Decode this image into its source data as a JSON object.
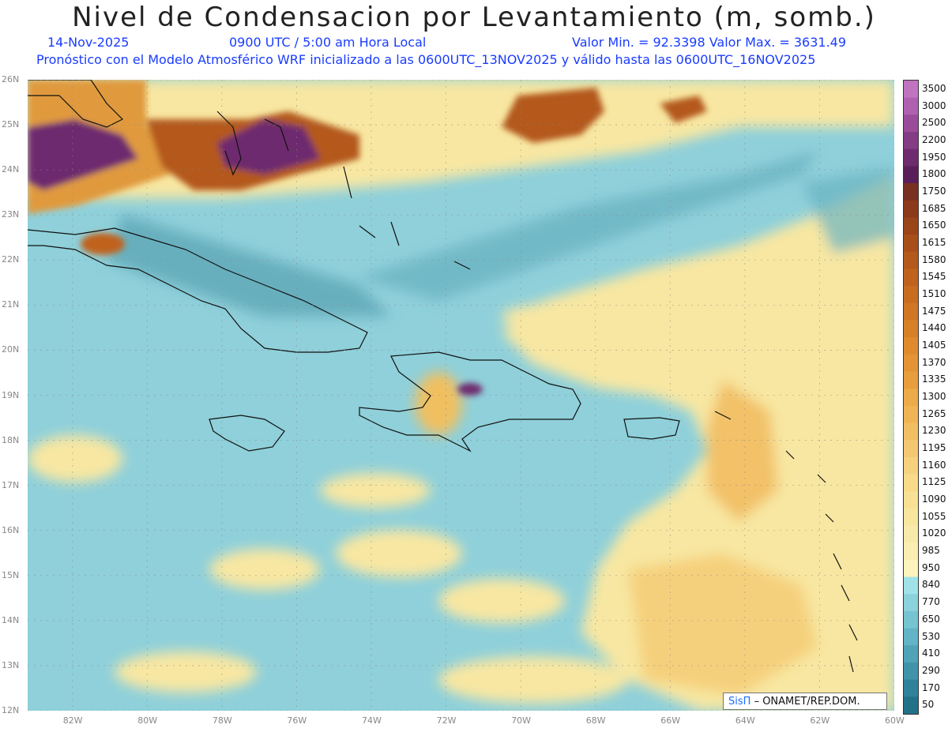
{
  "header": {
    "title": "Nivel de Condensacion por Levantamiento (m, somb.)",
    "date": "14-Nov-2025",
    "time": "0900 UTC / 5:00 am Hora Local",
    "minmax": "Valor Min. = 92.3398   Valor Max. = 3631.49",
    "forecast_note": "Pronóstico con el Modelo Atmosférico WRF inicializado a las 0600UTC_13NOV2025 y válido hasta las  0600UTC_16NOV2025"
  },
  "map": {
    "lat_labels": [
      "26N",
      "25N",
      "24N",
      "23N",
      "22N",
      "21N",
      "20N",
      "19N",
      "18N",
      "17N",
      "16N",
      "15N",
      "14N",
      "13N",
      "12N"
    ],
    "lon_labels": [
      "82W",
      "80W",
      "78W",
      "76W",
      "74W",
      "72W",
      "70W",
      "68W",
      "66W",
      "64W",
      "62W",
      "60W"
    ],
    "lat_range": [
      12,
      26
    ],
    "lon_range": [
      -83.2,
      -60
    ],
    "grid": "dotted"
  },
  "colorbar": {
    "levels": [
      "3500",
      "3000",
      "2500",
      "2200",
      "1950",
      "1800",
      "1750",
      "1685",
      "1650",
      "1615",
      "1580",
      "1545",
      "1510",
      "1475",
      "1440",
      "1405",
      "1370",
      "1335",
      "1300",
      "1265",
      "1230",
      "1195",
      "1160",
      "1125",
      "1090",
      "1055",
      "1020",
      "985",
      "950",
      "840",
      "770",
      "650",
      "530",
      "410",
      "290",
      "170",
      "50"
    ],
    "colors": [
      "#c074c0",
      "#b060b0",
      "#9a4c9a",
      "#843c84",
      "#6e2c6e",
      "#5a1f58",
      "#7a3020",
      "#8c3a1a",
      "#9a4418",
      "#a84e1a",
      "#b4581c",
      "#c0621e",
      "#c86c20",
      "#d07624",
      "#d88028",
      "#e08a2e",
      "#e49434",
      "#e89e3c",
      "#ecaa48",
      "#f0b454",
      "#f2be62",
      "#f4c870",
      "#f6d27e",
      "#f8da8a",
      "#f8e094",
      "#f8e69e",
      "#f8eaa8",
      "#faeeb2",
      "#fcf4bc",
      "#9fe2e8",
      "#8ad2dc",
      "#76c4d2",
      "#62b4c6",
      "#50a4b8",
      "#4094aa",
      "#30829a",
      "#217288"
    ]
  },
  "credit": {
    "brand": "SisΠ",
    "org": "– ONAMET/REP.DOM."
  }
}
